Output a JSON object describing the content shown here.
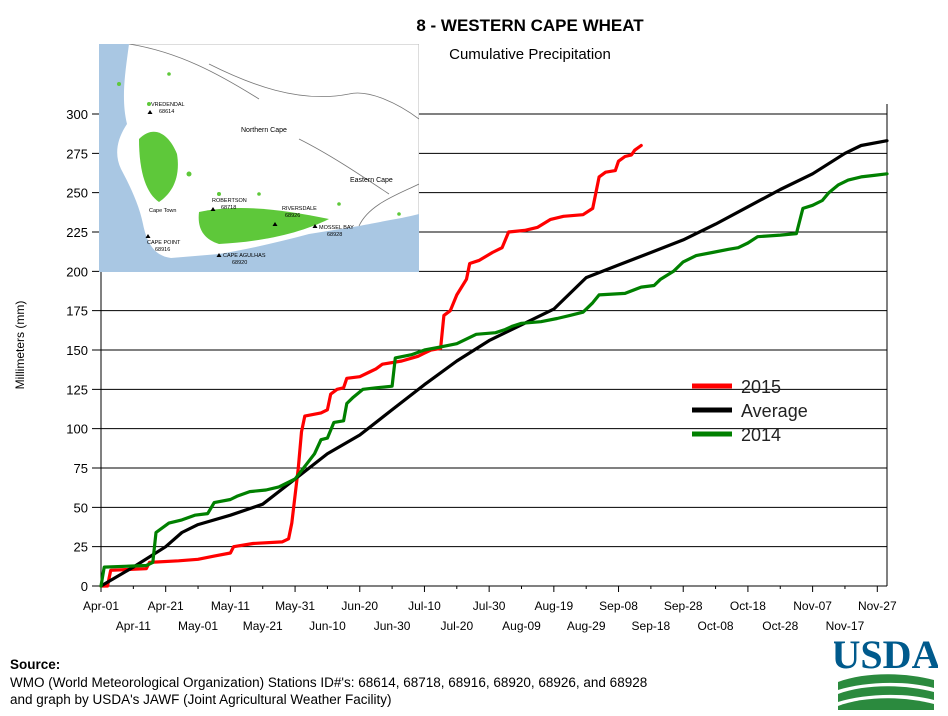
{
  "chart_data": {
    "type": "line",
    "title": "8 - WESTERN CAPE WHEAT",
    "subtitle": "Cumulative Precipitation",
    "ylabel": "Millimeters (mm)",
    "xlabel": "",
    "ylim": [
      0,
      300
    ],
    "yticks": [
      0,
      25,
      50,
      75,
      100,
      125,
      150,
      175,
      200,
      225,
      250,
      275,
      300
    ],
    "xlim": [
      "Apr-01",
      "Nov-30"
    ],
    "xticks_upper": [
      "Apr-01",
      "Apr-21",
      "May-11",
      "May-31",
      "Jun-20",
      "Jul-10",
      "Jul-30",
      "Aug-19",
      "Sep-08",
      "Sep-28",
      "Oct-18",
      "Nov-07",
      "Nov-27"
    ],
    "xticks_lower": [
      "Apr-11",
      "May-01",
      "May-21",
      "Jun-10",
      "Jun-30",
      "Jul-20",
      "Aug-09",
      "Aug-29",
      "Sep-18",
      "Oct-08",
      "Oct-28",
      "Nov-17"
    ],
    "grid": "horizontal",
    "legend_position": "right",
    "series": [
      {
        "name": "2015",
        "color": "#ff0000",
        "points": [
          [
            "Apr-01",
            0
          ],
          [
            "Apr-03",
            0
          ],
          [
            "Apr-04",
            10
          ],
          [
            "Apr-15",
            11
          ],
          [
            "Apr-16",
            15
          ],
          [
            "Apr-25",
            16
          ],
          [
            "May-01",
            17
          ],
          [
            "May-06",
            19
          ],
          [
            "May-11",
            21
          ],
          [
            "May-12",
            25
          ],
          [
            "May-18",
            27
          ],
          [
            "May-27",
            28
          ],
          [
            "May-29",
            30
          ],
          [
            "May-30",
            40
          ],
          [
            "Jun-01",
            75
          ],
          [
            "Jun-02",
            98
          ],
          [
            "Jun-03",
            108
          ],
          [
            "Jun-08",
            110
          ],
          [
            "Jun-10",
            112
          ],
          [
            "Jun-11",
            122
          ],
          [
            "Jun-13",
            125
          ],
          [
            "Jun-15",
            126
          ],
          [
            "Jun-16",
            132
          ],
          [
            "Jun-20",
            133
          ],
          [
            "Jun-23",
            136
          ],
          [
            "Jun-25",
            138
          ],
          [
            "Jun-27",
            141
          ],
          [
            "Jul-03",
            143
          ],
          [
            "Jul-08",
            146
          ],
          [
            "Jul-10",
            148
          ],
          [
            "Jul-12",
            150
          ],
          [
            "Jul-15",
            151
          ],
          [
            "Jul-16",
            172
          ],
          [
            "Jul-18",
            175
          ],
          [
            "Jul-20",
            185
          ],
          [
            "Jul-23",
            195
          ],
          [
            "Jul-24",
            205
          ],
          [
            "Jul-27",
            207
          ],
          [
            "Jul-31",
            212
          ],
          [
            "Aug-03",
            215
          ],
          [
            "Aug-05",
            225
          ],
          [
            "Aug-10",
            226
          ],
          [
            "Aug-14",
            228
          ],
          [
            "Aug-18",
            233
          ],
          [
            "Aug-22",
            235
          ],
          [
            "Aug-28",
            236
          ],
          [
            "Aug-31",
            240
          ],
          [
            "Sep-01",
            250
          ],
          [
            "Sep-02",
            260
          ],
          [
            "Sep-04",
            263
          ],
          [
            "Sep-07",
            264
          ],
          [
            "Sep-08",
            270
          ],
          [
            "Sep-10",
            273
          ],
          [
            "Sep-12",
            274
          ],
          [
            "Sep-13",
            277
          ],
          [
            "Sep-15",
            280
          ]
        ]
      },
      {
        "name": "Average",
        "color": "#000000",
        "points": [
          [
            "Apr-01",
            0
          ],
          [
            "Apr-11",
            12
          ],
          [
            "Apr-21",
            25
          ],
          [
            "Apr-26",
            34
          ],
          [
            "May-01",
            39
          ],
          [
            "May-11",
            45
          ],
          [
            "May-21",
            52
          ],
          [
            "May-31",
            68
          ],
          [
            "Jun-10",
            84
          ],
          [
            "Jun-20",
            96
          ],
          [
            "Jun-30",
            112
          ],
          [
            "Jul-10",
            128
          ],
          [
            "Jul-20",
            143
          ],
          [
            "Jul-30",
            156
          ],
          [
            "Aug-09",
            166
          ],
          [
            "Aug-19",
            176
          ],
          [
            "Aug-29",
            196
          ],
          [
            "Sep-08",
            204
          ],
          [
            "Sep-18",
            212
          ],
          [
            "Sep-28",
            220
          ],
          [
            "Oct-08",
            230
          ],
          [
            "Oct-18",
            241
          ],
          [
            "Oct-28",
            252
          ],
          [
            "Nov-07",
            262
          ],
          [
            "Nov-17",
            275
          ],
          [
            "Nov-22",
            280
          ],
          [
            "Nov-30",
            283
          ]
        ]
      },
      {
        "name": "2014",
        "color": "#008000",
        "points": [
          [
            "Apr-01",
            0
          ],
          [
            "Apr-02",
            12
          ],
          [
            "Apr-15",
            13
          ],
          [
            "Apr-17",
            15
          ],
          [
            "Apr-18",
            34
          ],
          [
            "Apr-22",
            40
          ],
          [
            "Apr-26",
            42
          ],
          [
            "Apr-30",
            45
          ],
          [
            "May-04",
            46
          ],
          [
            "May-06",
            53
          ],
          [
            "May-11",
            55
          ],
          [
            "May-13",
            57
          ],
          [
            "May-17",
            60
          ],
          [
            "May-22",
            61
          ],
          [
            "May-26",
            63
          ],
          [
            "May-31",
            68
          ],
          [
            "Jun-06",
            84
          ],
          [
            "Jun-08",
            93
          ],
          [
            "Jun-10",
            94
          ],
          [
            "Jun-12",
            104
          ],
          [
            "Jun-15",
            105
          ],
          [
            "Jun-16",
            116
          ],
          [
            "Jun-18",
            120
          ],
          [
            "Jun-21",
            125
          ],
          [
            "Jun-25",
            126
          ],
          [
            "Jun-30",
            127
          ],
          [
            "Jul-01",
            145
          ],
          [
            "Jul-06",
            147
          ],
          [
            "Jul-10",
            150
          ],
          [
            "Jul-15",
            152
          ],
          [
            "Jul-20",
            154
          ],
          [
            "Jul-26",
            160
          ],
          [
            "Aug-01",
            161
          ],
          [
            "Aug-04",
            163
          ],
          [
            "Aug-06",
            165
          ],
          [
            "Aug-09",
            167
          ],
          [
            "Aug-15",
            168
          ],
          [
            "Aug-20",
            170
          ],
          [
            "Aug-24",
            172
          ],
          [
            "Aug-28",
            174
          ],
          [
            "Aug-31",
            180
          ],
          [
            "Sep-02",
            185
          ],
          [
            "Sep-10",
            186
          ],
          [
            "Sep-15",
            190
          ],
          [
            "Sep-19",
            191
          ],
          [
            "Sep-21",
            195
          ],
          [
            "Sep-25",
            200
          ],
          [
            "Sep-28",
            206
          ],
          [
            "Oct-02",
            210
          ],
          [
            "Oct-07",
            212
          ],
          [
            "Oct-12",
            214
          ],
          [
            "Oct-15",
            215
          ],
          [
            "Oct-18",
            218
          ],
          [
            "Oct-21",
            222
          ],
          [
            "Oct-28",
            223
          ],
          [
            "Nov-02",
            224
          ],
          [
            "Nov-04",
            240
          ],
          [
            "Nov-07",
            242
          ],
          [
            "Nov-10",
            245
          ],
          [
            "Nov-12",
            250
          ],
          [
            "Nov-15",
            255
          ],
          [
            "Nov-18",
            258
          ],
          [
            "Nov-22",
            260
          ],
          [
            "Nov-26",
            261
          ],
          [
            "Nov-30",
            262
          ]
        ]
      }
    ]
  },
  "map": {
    "labels": [
      "VREDENDAL",
      "68614",
      "Northern Cape",
      "Eastern Cape",
      "Cape Town",
      "ROBERTSON",
      "68718",
      "RIVERSDALE",
      "68926",
      "MOSSEL BAY",
      "68928",
      "CAPE POINT",
      "68916",
      "CAPE AGULHAS",
      "68920"
    ]
  },
  "footer": {
    "source_label": "Source:",
    "line1": "WMO (World Meteorological Organization) Stations ID#'s: 68614, 68718, 68916, 68920, 68926, and 68928",
    "line2": "and graph by USDA's JAWF (Joint Agricultural Weather Facility)"
  },
  "logo": {
    "text": "USDA",
    "color": "#005a8c",
    "green": "#2b8a3e"
  }
}
